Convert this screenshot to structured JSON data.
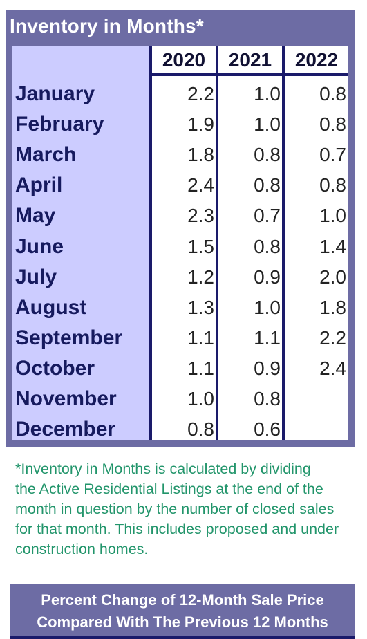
{
  "table": {
    "title": "Inventory in Months*",
    "columns": [
      "2020",
      "2021",
      "2022"
    ],
    "rows": [
      {
        "month": "January",
        "values": [
          "2.2",
          "1.0",
          "0.8"
        ]
      },
      {
        "month": "February",
        "values": [
          "1.9",
          "1.0",
          "0.8"
        ]
      },
      {
        "month": "March",
        "values": [
          "1.8",
          "0.8",
          "0.7"
        ]
      },
      {
        "month": "April",
        "values": [
          "2.4",
          "0.8",
          "0.8"
        ]
      },
      {
        "month": "May",
        "values": [
          "2.3",
          "0.7",
          "1.0"
        ]
      },
      {
        "month": "June",
        "values": [
          "1.5",
          "0.8",
          "1.4"
        ]
      },
      {
        "month": "July",
        "values": [
          "1.2",
          "0.9",
          "2.0"
        ]
      },
      {
        "month": "August",
        "values": [
          "1.3",
          "1.0",
          "1.8"
        ]
      },
      {
        "month": "September",
        "values": [
          "1.1",
          "1.1",
          "2.2"
        ]
      },
      {
        "month": "October",
        "values": [
          "1.1",
          "0.9",
          "2.4"
        ]
      },
      {
        "month": "November",
        "values": [
          "1.0",
          "0.8",
          ""
        ]
      },
      {
        "month": "December",
        "values": [
          "0.8",
          "0.6",
          ""
        ]
      }
    ]
  },
  "footnote": {
    "lines": [
      "*Inventory in Months is calculated by dividing",
      "the Active Residential Listings at the end of the",
      "month in question by the number of closed sales",
      "for that month. This includes proposed and under",
      "construction homes."
    ]
  },
  "banner": {
    "line1": "Percent Change of 12-Month Sale Price",
    "line2": "Compared With The Previous 12 Months"
  },
  "colors": {
    "panel": "#6d6ca4",
    "month_column": "#ccccff",
    "footnote_text": "#22956b",
    "grid_lines": "#1a1a6a"
  }
}
